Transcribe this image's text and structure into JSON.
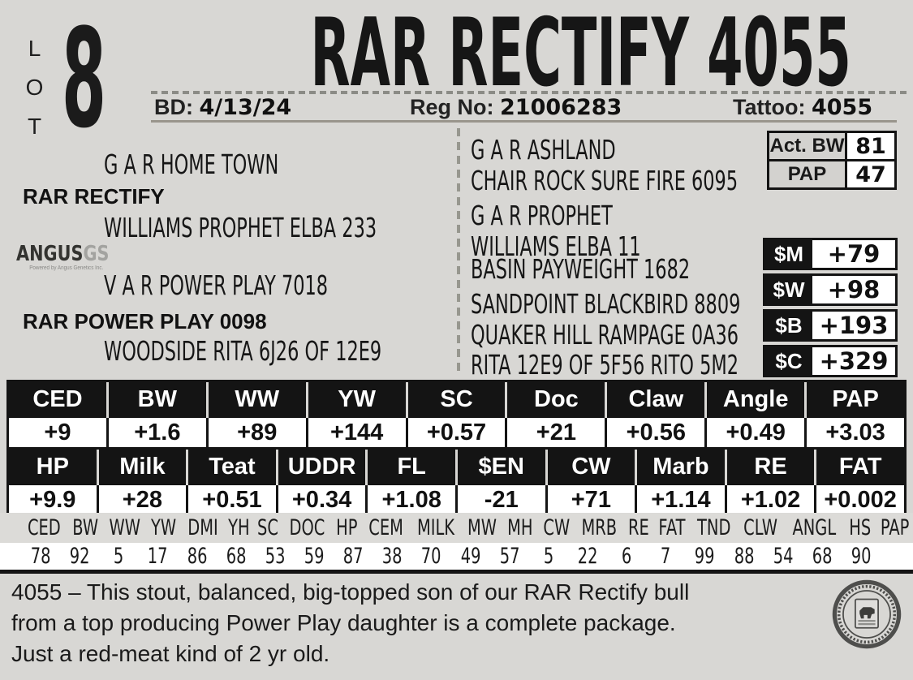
{
  "colors": {
    "page_bg": "#d8d7d4",
    "ink": "#141414",
    "label_gray": "#d3d2cf",
    "rule_tan": "#99958c"
  },
  "lot": {
    "label": "LOT",
    "number": "8"
  },
  "title": "RAR RECTIFY 4055",
  "id_row": {
    "bd_label": "BD:",
    "bd_value": "4/13/24",
    "reg_label": "Reg No:",
    "reg_value": "21006283",
    "tattoo_label": "Tattoo:",
    "tattoo_value": "4055"
  },
  "pedigree": {
    "sire_name": "RAR RECTIFY",
    "sire_sire": "G A R HOME TOWN",
    "sire_dam": "WILLIAMS PROPHET ELBA 233",
    "dam_name": "RAR POWER PLAY 0098",
    "dam_sire": "V A R POWER PLAY 7018",
    "dam_dam": "WOODSIDE RITA 6J26 OF 12E9",
    "right_column": [
      "G A R ASHLAND",
      "CHAIR ROCK SURE FIRE 6095",
      "G A R PROPHET",
      "WILLIAMS ELBA 11",
      "BASIN PAYWEIGHT 1682",
      "SANDPOINT BLACKBIRD 8809",
      "QUAKER HILL RAMPAGE 0A36",
      "RITA 12E9 OF 5F56 RITO 5M2"
    ]
  },
  "angus_logo": {
    "word1": "ANGUS",
    "word2": "GS",
    "tagline": "Powered by Angus Genetics Inc."
  },
  "act_table": {
    "bw_label": "Act. BW",
    "bw_value": "81",
    "pap_label": "PAP",
    "pap_value": "47"
  },
  "dollar_rows": [
    {
      "label": "$M",
      "value": "+79"
    },
    {
      "label": "$W",
      "value": "+98"
    },
    {
      "label": "$B",
      "value": "+193"
    },
    {
      "label": "$C",
      "value": "+329"
    }
  ],
  "epd1": {
    "headers": [
      "CED",
      "BW",
      "WW",
      "YW",
      "SC",
      "Doc",
      "Claw",
      "Angle",
      "PAP"
    ],
    "values": [
      "+9",
      "+1.6",
      "+89",
      "+144",
      "+0.57",
      "+21",
      "+0.56",
      "+0.49",
      "+3.03"
    ]
  },
  "epd2": {
    "headers": [
      "HP",
      "Milk",
      "Teat",
      "UDDR",
      "FL",
      "$EN",
      "CW",
      "Marb",
      "RE",
      "FAT"
    ],
    "values": [
      "+9.9",
      "+28",
      "+0.51",
      "+0.34",
      "+1.08",
      "-21",
      "+71",
      "+1.14",
      "+1.02",
      "+0.002"
    ]
  },
  "percentiles": {
    "headers": [
      "CED",
      "BW",
      "WW",
      "YW",
      "DMI",
      "YH",
      "SC",
      "DOC",
      "HP",
      "CEM",
      "MILK",
      "MW",
      "MH",
      "CW",
      "MRB",
      "RE",
      "FAT",
      "TND",
      "CLW",
      "ANGL",
      "HS",
      "PAP"
    ],
    "values": [
      "78",
      "92",
      "5",
      "17",
      "86",
      "68",
      "53",
      "59",
      "87",
      "38",
      "70",
      "49",
      "57",
      "5",
      "22",
      "6",
      "7",
      "99",
      "88",
      "54",
      "68",
      "90"
    ]
  },
  "description": {
    "lines": [
      "4055 – This stout, balanced, big-topped son of our RAR Rectify bull",
      "from a top producing Power Play daughter is a complete package.",
      "Just a red-meat kind of 2 yr old."
    ]
  },
  "seal_icon": "angus-association-seal"
}
